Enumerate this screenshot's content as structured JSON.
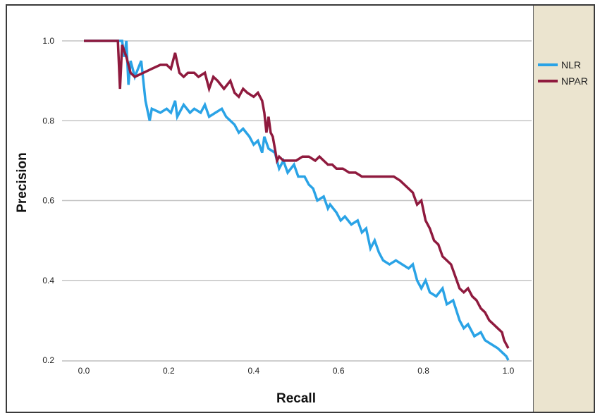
{
  "chart_data": {
    "type": "line",
    "xlabel": "Recall",
    "ylabel": "Precision",
    "xlim": [
      0.0,
      1.0
    ],
    "ylim": [
      0.2,
      1.0
    ],
    "xticks": [
      "0.0",
      "0.2",
      "0.4",
      "0.6",
      "0.8",
      "1.0"
    ],
    "yticks": [
      "0.2",
      "0.4",
      "0.6",
      "0.8",
      "1.0"
    ],
    "grid": "horizontal",
    "legend_position": "right",
    "background": "#ffffff",
    "legend_background": "#ebe4cf",
    "series": [
      {
        "name": "NLR",
        "color": "#2aa3e6",
        "points": [
          [
            0.0,
            1.0
          ],
          [
            0.09,
            1.0
          ],
          [
            0.095,
            0.96
          ],
          [
            0.1,
            1.0
          ],
          [
            0.105,
            0.89
          ],
          [
            0.11,
            0.95
          ],
          [
            0.12,
            0.91
          ],
          [
            0.135,
            0.95
          ],
          [
            0.145,
            0.85
          ],
          [
            0.155,
            0.8
          ],
          [
            0.16,
            0.83
          ],
          [
            0.18,
            0.82
          ],
          [
            0.195,
            0.83
          ],
          [
            0.205,
            0.82
          ],
          [
            0.215,
            0.85
          ],
          [
            0.22,
            0.81
          ],
          [
            0.235,
            0.84
          ],
          [
            0.25,
            0.82
          ],
          [
            0.26,
            0.83
          ],
          [
            0.275,
            0.82
          ],
          [
            0.285,
            0.84
          ],
          [
            0.295,
            0.81
          ],
          [
            0.31,
            0.82
          ],
          [
            0.325,
            0.83
          ],
          [
            0.335,
            0.81
          ],
          [
            0.345,
            0.8
          ],
          [
            0.355,
            0.79
          ],
          [
            0.365,
            0.77
          ],
          [
            0.375,
            0.78
          ],
          [
            0.39,
            0.76
          ],
          [
            0.4,
            0.74
          ],
          [
            0.41,
            0.75
          ],
          [
            0.42,
            0.72
          ],
          [
            0.425,
            0.76
          ],
          [
            0.435,
            0.73
          ],
          [
            0.45,
            0.72
          ],
          [
            0.46,
            0.68
          ],
          [
            0.47,
            0.7
          ],
          [
            0.48,
            0.67
          ],
          [
            0.495,
            0.69
          ],
          [
            0.505,
            0.66
          ],
          [
            0.52,
            0.66
          ],
          [
            0.53,
            0.64
          ],
          [
            0.54,
            0.63
          ],
          [
            0.55,
            0.6
          ],
          [
            0.565,
            0.61
          ],
          [
            0.575,
            0.58
          ],
          [
            0.58,
            0.59
          ],
          [
            0.595,
            0.57
          ],
          [
            0.605,
            0.55
          ],
          [
            0.615,
            0.56
          ],
          [
            0.63,
            0.54
          ],
          [
            0.645,
            0.55
          ],
          [
            0.655,
            0.52
          ],
          [
            0.665,
            0.53
          ],
          [
            0.675,
            0.48
          ],
          [
            0.685,
            0.5
          ],
          [
            0.695,
            0.47
          ],
          [
            0.705,
            0.45
          ],
          [
            0.72,
            0.44
          ],
          [
            0.735,
            0.45
          ],
          [
            0.75,
            0.44
          ],
          [
            0.765,
            0.43
          ],
          [
            0.775,
            0.44
          ],
          [
            0.785,
            0.4
          ],
          [
            0.795,
            0.38
          ],
          [
            0.805,
            0.4
          ],
          [
            0.815,
            0.37
          ],
          [
            0.83,
            0.36
          ],
          [
            0.845,
            0.38
          ],
          [
            0.855,
            0.34
          ],
          [
            0.87,
            0.35
          ],
          [
            0.885,
            0.3
          ],
          [
            0.895,
            0.28
          ],
          [
            0.905,
            0.29
          ],
          [
            0.92,
            0.26
          ],
          [
            0.935,
            0.27
          ],
          [
            0.945,
            0.25
          ],
          [
            0.96,
            0.24
          ],
          [
            0.975,
            0.23
          ],
          [
            0.985,
            0.22
          ],
          [
            0.995,
            0.21
          ],
          [
            1.0,
            0.2
          ]
        ]
      },
      {
        "name": "NPAR",
        "color": "#8f1a3e",
        "points": [
          [
            0.0,
            1.0
          ],
          [
            0.08,
            1.0
          ],
          [
            0.085,
            0.88
          ],
          [
            0.09,
            0.99
          ],
          [
            0.1,
            0.96
          ],
          [
            0.11,
            0.92
          ],
          [
            0.12,
            0.91
          ],
          [
            0.14,
            0.92
          ],
          [
            0.16,
            0.93
          ],
          [
            0.18,
            0.94
          ],
          [
            0.195,
            0.94
          ],
          [
            0.205,
            0.93
          ],
          [
            0.215,
            0.97
          ],
          [
            0.225,
            0.92
          ],
          [
            0.235,
            0.91
          ],
          [
            0.245,
            0.92
          ],
          [
            0.26,
            0.92
          ],
          [
            0.27,
            0.91
          ],
          [
            0.285,
            0.92
          ],
          [
            0.295,
            0.88
          ],
          [
            0.305,
            0.91
          ],
          [
            0.315,
            0.9
          ],
          [
            0.33,
            0.88
          ],
          [
            0.345,
            0.9
          ],
          [
            0.355,
            0.87
          ],
          [
            0.365,
            0.86
          ],
          [
            0.375,
            0.88
          ],
          [
            0.385,
            0.87
          ],
          [
            0.4,
            0.86
          ],
          [
            0.41,
            0.87
          ],
          [
            0.42,
            0.85
          ],
          [
            0.425,
            0.82
          ],
          [
            0.43,
            0.77
          ],
          [
            0.435,
            0.81
          ],
          [
            0.44,
            0.77
          ],
          [
            0.445,
            0.76
          ],
          [
            0.45,
            0.73
          ],
          [
            0.455,
            0.7
          ],
          [
            0.46,
            0.71
          ],
          [
            0.47,
            0.7
          ],
          [
            0.485,
            0.7
          ],
          [
            0.5,
            0.7
          ],
          [
            0.515,
            0.71
          ],
          [
            0.53,
            0.71
          ],
          [
            0.545,
            0.7
          ],
          [
            0.555,
            0.71
          ],
          [
            0.565,
            0.7
          ],
          [
            0.575,
            0.69
          ],
          [
            0.585,
            0.69
          ],
          [
            0.595,
            0.68
          ],
          [
            0.61,
            0.68
          ],
          [
            0.625,
            0.67
          ],
          [
            0.64,
            0.67
          ],
          [
            0.655,
            0.66
          ],
          [
            0.67,
            0.66
          ],
          [
            0.685,
            0.66
          ],
          [
            0.7,
            0.66
          ],
          [
            0.715,
            0.66
          ],
          [
            0.73,
            0.66
          ],
          [
            0.745,
            0.65
          ],
          [
            0.755,
            0.64
          ],
          [
            0.765,
            0.63
          ],
          [
            0.775,
            0.62
          ],
          [
            0.785,
            0.59
          ],
          [
            0.795,
            0.6
          ],
          [
            0.805,
            0.55
          ],
          [
            0.815,
            0.53
          ],
          [
            0.825,
            0.5
          ],
          [
            0.835,
            0.49
          ],
          [
            0.845,
            0.46
          ],
          [
            0.855,
            0.45
          ],
          [
            0.865,
            0.44
          ],
          [
            0.875,
            0.41
          ],
          [
            0.885,
            0.38
          ],
          [
            0.895,
            0.37
          ],
          [
            0.905,
            0.38
          ],
          [
            0.915,
            0.36
          ],
          [
            0.925,
            0.35
          ],
          [
            0.935,
            0.33
          ],
          [
            0.945,
            0.32
          ],
          [
            0.955,
            0.3
          ],
          [
            0.965,
            0.29
          ],
          [
            0.975,
            0.28
          ],
          [
            0.985,
            0.27
          ],
          [
            0.99,
            0.25
          ],
          [
            0.995,
            0.24
          ],
          [
            1.0,
            0.23
          ]
        ]
      }
    ]
  }
}
